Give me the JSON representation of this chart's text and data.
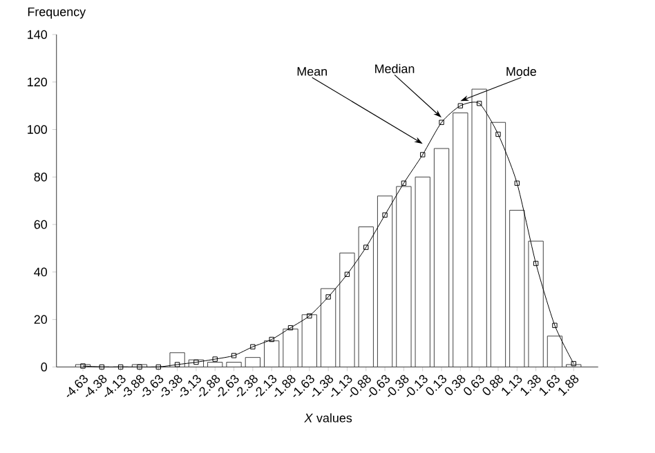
{
  "chart_data": {
    "type": "bar",
    "xlabel": "*X* values",
    "ylabel": "Frequency",
    "categories": [
      "-4.63",
      "-4.38",
      "-4.13",
      "-3.88",
      "-3.63",
      "-3.38",
      "-3.13",
      "-2.88",
      "-2.63",
      "-2.38",
      "-2.13",
      "-1.88",
      "-1.63",
      "-1.38",
      "-1.13",
      "-0.88",
      "-0.63",
      "-0.38",
      "-0.13",
      "0.13",
      "0.38",
      "0.63",
      "0.88",
      "1.13",
      "1.38",
      "1.63",
      "1.88"
    ],
    "series": [
      {
        "color": "#404040",
        "values": [
          1,
          0,
          0,
          1,
          0,
          6,
          3,
          2,
          2,
          4,
          11,
          16,
          22,
          33,
          48,
          59,
          72,
          76,
          80,
          92,
          107,
          117,
          103,
          66,
          53,
          13,
          1
        ]
      },
      {
        "type": "line",
        "color": "#000000",
        "values": [
          0.4,
          0,
          0,
          0,
          0,
          1,
          2,
          3.3,
          4.8,
          8.5,
          11.6,
          16.5,
          21.5,
          29.5,
          39,
          50.4,
          64,
          77.4,
          89.4,
          103,
          110,
          111,
          98,
          77.4,
          43.6,
          17.5,
          1.4
        ]
      }
    ],
    "ylim": [
      0,
      140
    ],
    "yticks": [
      0,
      20,
      40,
      60,
      80,
      100,
      120,
      140
    ],
    "marker": "square",
    "line_style": "solid",
    "grid": false,
    "annotations": [
      {
        "text": "Mean",
        "x": "-0.13",
        "y": 94
      },
      {
        "text": "Median",
        "x": "0.13",
        "y": 105
      },
      {
        "text": "Mode",
        "x": "0.38",
        "y": 112
      }
    ]
  }
}
